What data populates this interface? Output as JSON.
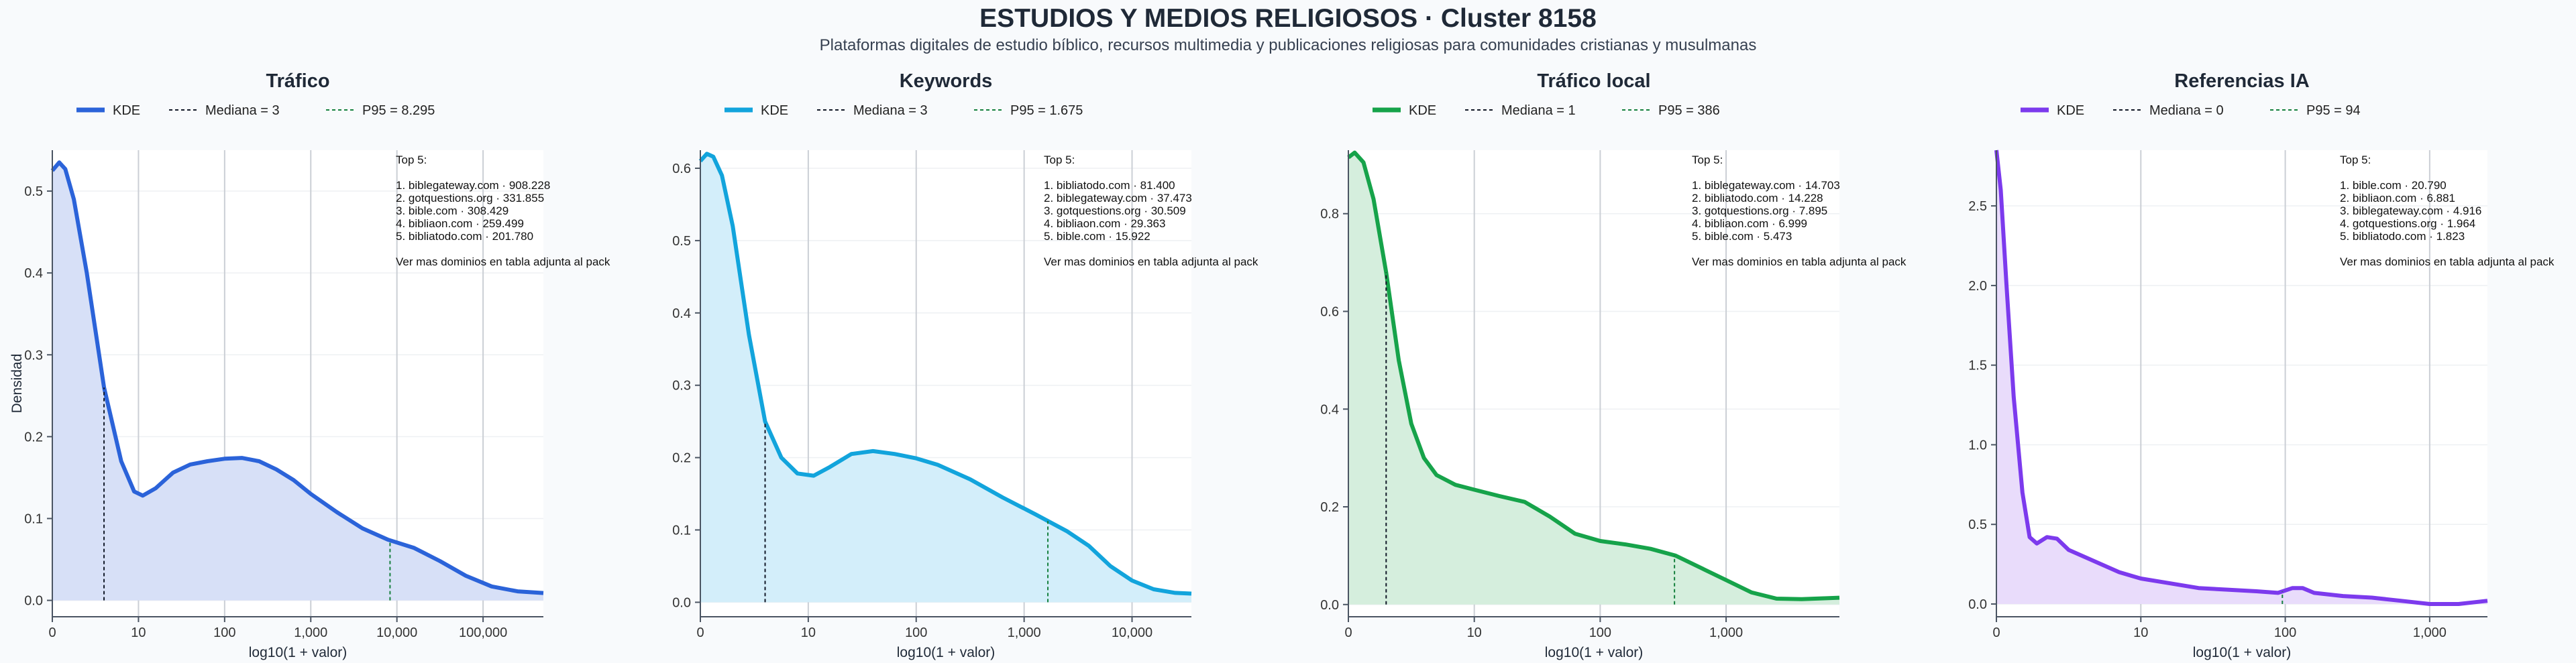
{
  "header": {
    "title": "ESTUDIOS Y MEDIOS RELIGIOSOS · Cluster 8158",
    "subtitle": "Plataformas digitales de estudio bíblico, recursos multimedia y publicaciones religiosas para comunidades cristianas y musulmanas"
  },
  "shared": {
    "ylabel_left": "Densidad",
    "xlabel": "log10(1 + valor)",
    "top_label": "Top 5:",
    "more_note": "Ver mas dominios en tabla adjunta al pack",
    "kde_label": "KDE"
  },
  "chart_data": [
    {
      "type": "area",
      "title": "Tráfico",
      "color": "#2b63d9",
      "fill": "#d7e0f7",
      "p95_color": "#15803d",
      "xlim": [
        0,
        5.7
      ],
      "ylim": [
        -0.02,
        0.55
      ],
      "xticks": [
        {
          "v": 0,
          "label": "0"
        },
        {
          "v": 1,
          "label": "10"
        },
        {
          "v": 2,
          "label": "100"
        },
        {
          "v": 3,
          "label": "1,000"
        },
        {
          "v": 4,
          "label": "10,000"
        },
        {
          "v": 5,
          "label": "100,000"
        }
      ],
      "yticks": [
        {
          "v": 0,
          "label": "0.0"
        },
        {
          "v": 0.1,
          "label": "0.1"
        },
        {
          "v": 0.2,
          "label": "0.2"
        },
        {
          "v": 0.3,
          "label": "0.3"
        },
        {
          "v": 0.4,
          "label": "0.4"
        },
        {
          "v": 0.5,
          "label": "0.5"
        }
      ],
      "kde": [
        [
          0,
          0.525
        ],
        [
          0.08,
          0.535
        ],
        [
          0.15,
          0.527
        ],
        [
          0.25,
          0.49
        ],
        [
          0.4,
          0.4
        ],
        [
          0.6,
          0.26
        ],
        [
          0.8,
          0.17
        ],
        [
          0.95,
          0.133
        ],
        [
          1.05,
          0.128
        ],
        [
          1.2,
          0.137
        ],
        [
          1.4,
          0.156
        ],
        [
          1.6,
          0.166
        ],
        [
          1.8,
          0.17
        ],
        [
          2.0,
          0.173
        ],
        [
          2.2,
          0.174
        ],
        [
          2.4,
          0.17
        ],
        [
          2.6,
          0.16
        ],
        [
          2.8,
          0.147
        ],
        [
          3.0,
          0.13
        ],
        [
          3.3,
          0.108
        ],
        [
          3.6,
          0.088
        ],
        [
          3.9,
          0.074
        ],
        [
          4.2,
          0.064
        ],
        [
          4.5,
          0.048
        ],
        [
          4.8,
          0.03
        ],
        [
          5.1,
          0.017
        ],
        [
          5.4,
          0.011
        ],
        [
          5.7,
          0.009
        ]
      ],
      "median": {
        "x": 0.6,
        "label": "Mediana = 3"
      },
      "p95": {
        "x": 3.92,
        "label": "P95 = 8.295"
      },
      "top5": [
        "1. biblegateway.com · 908.228",
        "2. gotquestions.org · 331.855",
        "3. bible.com · 308.429",
        "4. bibliaon.com · 259.499",
        "5. bibliatodo.com · 201.780"
      ]
    },
    {
      "type": "area",
      "title": "Keywords",
      "color": "#12a4dc",
      "fill": "#d3eefa",
      "p95_color": "#15803d",
      "xlim": [
        0,
        4.55
      ],
      "ylim": [
        -0.02,
        0.625
      ],
      "xticks": [
        {
          "v": 0,
          "label": "0"
        },
        {
          "v": 1,
          "label": "10"
        },
        {
          "v": 2,
          "label": "100"
        },
        {
          "v": 3,
          "label": "1,000"
        },
        {
          "v": 4,
          "label": "10,000"
        }
      ],
      "yticks": [
        {
          "v": 0,
          "label": "0.0"
        },
        {
          "v": 0.1,
          "label": "0.1"
        },
        {
          "v": 0.2,
          "label": "0.2"
        },
        {
          "v": 0.3,
          "label": "0.3"
        },
        {
          "v": 0.4,
          "label": "0.4"
        },
        {
          "v": 0.5,
          "label": "0.5"
        },
        {
          "v": 0.6,
          "label": "0.6"
        }
      ],
      "kde": [
        [
          0,
          0.61
        ],
        [
          0.06,
          0.62
        ],
        [
          0.12,
          0.616
        ],
        [
          0.2,
          0.59
        ],
        [
          0.3,
          0.52
        ],
        [
          0.45,
          0.37
        ],
        [
          0.6,
          0.25
        ],
        [
          0.75,
          0.2
        ],
        [
          0.9,
          0.178
        ],
        [
          1.05,
          0.175
        ],
        [
          1.2,
          0.187
        ],
        [
          1.4,
          0.205
        ],
        [
          1.6,
          0.209
        ],
        [
          1.8,
          0.205
        ],
        [
          2.0,
          0.199
        ],
        [
          2.2,
          0.19
        ],
        [
          2.5,
          0.17
        ],
        [
          2.8,
          0.145
        ],
        [
          3.1,
          0.122
        ],
        [
          3.4,
          0.098
        ],
        [
          3.6,
          0.078
        ],
        [
          3.8,
          0.05
        ],
        [
          4.0,
          0.03
        ],
        [
          4.2,
          0.018
        ],
        [
          4.4,
          0.013
        ],
        [
          4.55,
          0.012
        ]
      ],
      "median": {
        "x": 0.6,
        "label": "Mediana = 3"
      },
      "p95": {
        "x": 3.22,
        "label": "P95 = 1.675"
      },
      "top5": [
        "1. bibliatodo.com · 81.400",
        "2. biblegateway.com · 37.473",
        "3. gotquestions.org · 30.509",
        "4. bibliaon.com · 29.363",
        "5. bible.com · 15.922"
      ]
    },
    {
      "type": "area",
      "title": "Tráfico local",
      "color": "#16a34a",
      "fill": "#d5eedd",
      "p95_color": "#15803d",
      "xlim": [
        0,
        3.9
      ],
      "ylim": [
        -0.025,
        0.93
      ],
      "xticks": [
        {
          "v": 0,
          "label": "0"
        },
        {
          "v": 1,
          "label": "10"
        },
        {
          "v": 2,
          "label": "100"
        },
        {
          "v": 3,
          "label": "1,000"
        }
      ],
      "yticks": [
        {
          "v": 0,
          "label": "0.0"
        },
        {
          "v": 0.2,
          "label": "0.2"
        },
        {
          "v": 0.4,
          "label": "0.4"
        },
        {
          "v": 0.6,
          "label": "0.6"
        },
        {
          "v": 0.8,
          "label": "0.8"
        }
      ],
      "kde": [
        [
          0,
          0.915
        ],
        [
          0.05,
          0.925
        ],
        [
          0.12,
          0.905
        ],
        [
          0.2,
          0.83
        ],
        [
          0.3,
          0.68
        ],
        [
          0.4,
          0.5
        ],
        [
          0.5,
          0.37
        ],
        [
          0.6,
          0.3
        ],
        [
          0.7,
          0.265
        ],
        [
          0.85,
          0.245
        ],
        [
          1.0,
          0.235
        ],
        [
          1.2,
          0.222
        ],
        [
          1.4,
          0.21
        ],
        [
          1.6,
          0.18
        ],
        [
          1.8,
          0.145
        ],
        [
          2.0,
          0.13
        ],
        [
          2.2,
          0.123
        ],
        [
          2.4,
          0.114
        ],
        [
          2.6,
          0.1
        ],
        [
          2.8,
          0.075
        ],
        [
          3.0,
          0.05
        ],
        [
          3.2,
          0.025
        ],
        [
          3.4,
          0.012
        ],
        [
          3.6,
          0.011
        ],
        [
          3.9,
          0.014
        ]
      ],
      "median": {
        "x": 0.3,
        "label": "Mediana = 1"
      },
      "p95": {
        "x": 2.59,
        "label": "P95 = 386"
      },
      "top5": [
        "1. biblegateway.com · 14.703",
        "2. bibliatodo.com · 14.228",
        "3. gotquestions.org · 7.895",
        "4. bibliaon.com · 6.999",
        "5. bible.com · 5.473"
      ]
    },
    {
      "type": "area",
      "title": "Referencias IA",
      "color": "#7c3aed",
      "fill": "#e9dcfb",
      "p95_color": "#15803d",
      "xlim": [
        0,
        3.4
      ],
      "ylim": [
        -0.08,
        2.85
      ],
      "xticks": [
        {
          "v": 0,
          "label": "0"
        },
        {
          "v": 1,
          "label": "10"
        },
        {
          "v": 2,
          "label": "100"
        },
        {
          "v": 3,
          "label": "1,000"
        }
      ],
      "yticks": [
        {
          "v": 0,
          "label": "0.0"
        },
        {
          "v": 0.5,
          "label": "0.5"
        },
        {
          "v": 1.0,
          "label": "1.0"
        },
        {
          "v": 1.5,
          "label": "1.5"
        },
        {
          "v": 2.0,
          "label": "2.0"
        },
        {
          "v": 2.5,
          "label": "2.5"
        }
      ],
      "kde": [
        [
          0,
          2.85
        ],
        [
          0.03,
          2.6
        ],
        [
          0.07,
          2.0
        ],
        [
          0.12,
          1.3
        ],
        [
          0.18,
          0.7
        ],
        [
          0.23,
          0.42
        ],
        [
          0.28,
          0.38
        ],
        [
          0.35,
          0.42
        ],
        [
          0.42,
          0.41
        ],
        [
          0.5,
          0.34
        ],
        [
          0.6,
          0.3
        ],
        [
          0.7,
          0.26
        ],
        [
          0.85,
          0.2
        ],
        [
          1.0,
          0.16
        ],
        [
          1.2,
          0.13
        ],
        [
          1.4,
          0.1
        ],
        [
          1.6,
          0.09
        ],
        [
          1.8,
          0.08
        ],
        [
          1.95,
          0.07
        ],
        [
          2.05,
          0.1
        ],
        [
          2.12,
          0.1
        ],
        [
          2.2,
          0.07
        ],
        [
          2.4,
          0.05
        ],
        [
          2.6,
          0.04
        ],
        [
          2.8,
          0.02
        ],
        [
          3.0,
          0.0
        ],
        [
          3.2,
          0.0
        ],
        [
          3.4,
          0.02
        ]
      ],
      "median": {
        "x": 0.0,
        "label": "Mediana = 0"
      },
      "p95": {
        "x": 1.98,
        "label": "P95 = 94"
      },
      "top5": [
        "1. bible.com · 20.790",
        "2. bibliaon.com · 6.881",
        "3. biblegateway.com · 4.916",
        "4. gotquestions.org · 1.964",
        "5. bibliatodo.com · 1.823"
      ]
    }
  ]
}
